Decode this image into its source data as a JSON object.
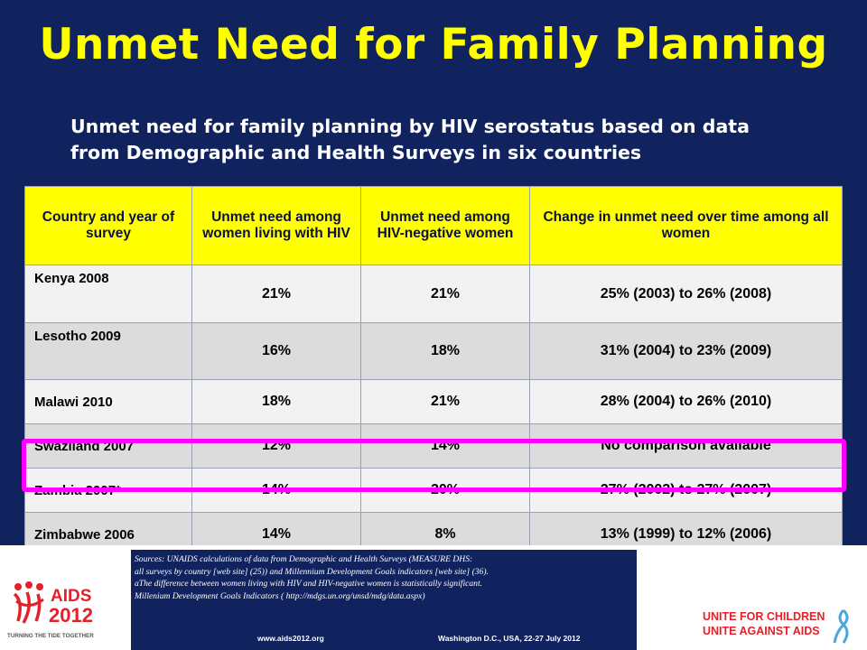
{
  "title": "Unmet Need for Family Planning",
  "subtitle": {
    "line1": "Unmet need for family planning by HIV serostatus based on data",
    "line2": "from Demographic and Health Surveys in six countries"
  },
  "table": {
    "headers": [
      "Country and year of survey",
      "Unmet need among women living with HIV",
      "Unmet need among HIV-negative women",
      "Change in unmet need over time among all women"
    ],
    "rows": [
      [
        "Kenya 2008",
        "21%",
        "21%",
        "25% (2003) to 26% (2008)"
      ],
      [
        "Lesotho 2009",
        "16%",
        "18%",
        "31% (2004) to 23% (2009)"
      ],
      [
        "Malawi 2010",
        "18%",
        "21%",
        "28% (2004) to 26% (2010)"
      ],
      [
        "Swaziland 2007",
        "12%",
        "14%",
        "No comparison available"
      ],
      [
        "Zambia 2007*",
        "14%",
        "20%",
        "27% (2002) to 27% (2007)"
      ],
      [
        "Zimbabwe 2006",
        "14%",
        "8%",
        "13% (1999) to 12% (2006)"
      ]
    ],
    "highlighted_row": "Zambia 2007*"
  },
  "sources": [
    "Sources: UNAIDS calculations of data from Demographic and Health Surveys (MEASURE DHS:",
    "all surveys by country [web site] (25)) and Millennium Development Goals indicators [web site] (36).",
    "aThe difference between women living with HIV and HIV-negative women is statistically significant.",
    "Millenium Development Goals Indicators  ( http://mdgs.un.org/unsd/mdg/data.aspx)"
  ],
  "footer": {
    "url": "www.aids2012.org",
    "location": "Washington D.C., USA, 22-27 July 2012"
  },
  "logos": {
    "aids2012": {
      "line1": "AIDS",
      "line2": "2012",
      "tagline": "TURNING THE TIDE TOGETHER"
    },
    "unite": {
      "line1": "UNITE FOR CHILDREN",
      "line2": "UNITE AGAINST AIDS"
    }
  },
  "colors": {
    "background": "#10235f",
    "title": "#ffff00",
    "header_fill": "#ffff00",
    "highlight_border": "#ff00ff",
    "logo_red": "#e4202a"
  }
}
